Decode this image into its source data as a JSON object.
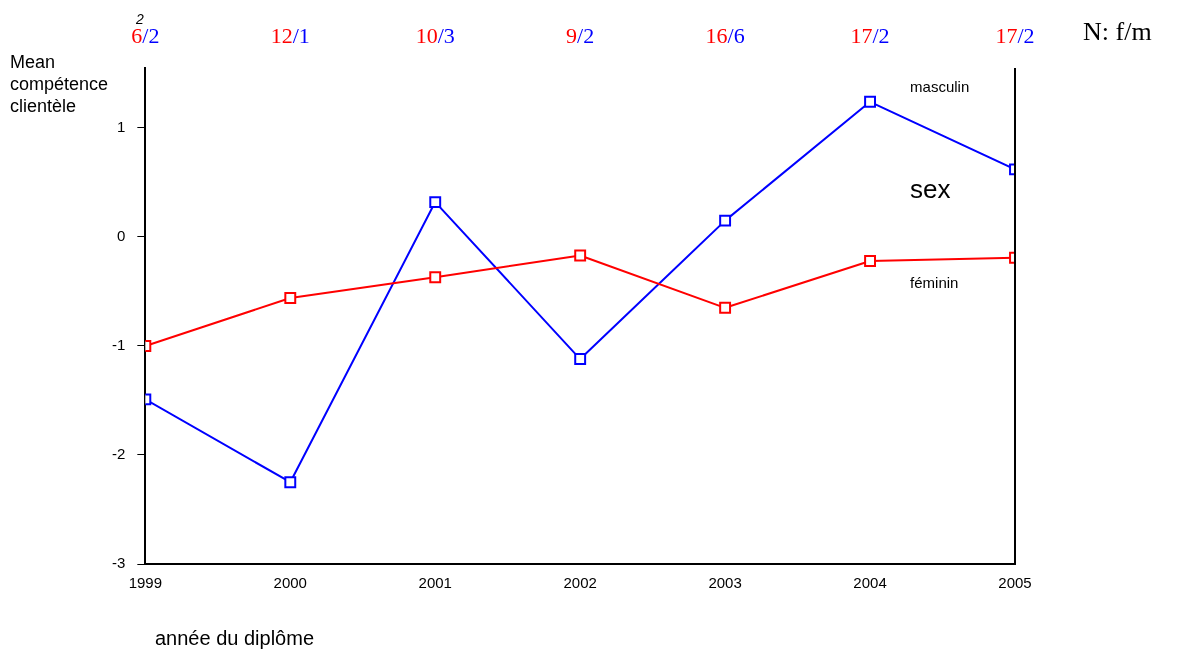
{
  "chart_data": {
    "type": "line",
    "ylabel": "Mean compétence clientèle",
    "xlabel": "année du diplôme",
    "legend_title": "sex",
    "x": [
      1999,
      2000,
      2001,
      2002,
      2003,
      2004,
      2005
    ],
    "xlim": [
      1999,
      2005
    ],
    "xticks": [
      1999,
      2000,
      2001,
      2002,
      2003,
      2004,
      2005
    ],
    "ylim": [
      -3,
      1.55
    ],
    "yticks": [
      -3,
      -2,
      -1,
      0,
      1
    ],
    "grid": false,
    "legend": false,
    "marker": "square",
    "line_style": "solid",
    "series": [
      {
        "name": "féminin",
        "color": "#ff0000",
        "values": [
          -1.0,
          -0.56,
          -0.37,
          -0.17,
          -0.65,
          -0.22,
          -0.19
        ]
      },
      {
        "name": "masculin",
        "color": "#0000ff",
        "values": [
          -1.49,
          -2.25,
          0.32,
          -1.12,
          0.15,
          1.24,
          0.62
        ]
      }
    ],
    "annotations": [
      "2",
      "6/2",
      "12/1",
      "10/3",
      "9/2",
      "16/6",
      "17/2",
      "17/2",
      "N: f/m"
    ]
  }
}
